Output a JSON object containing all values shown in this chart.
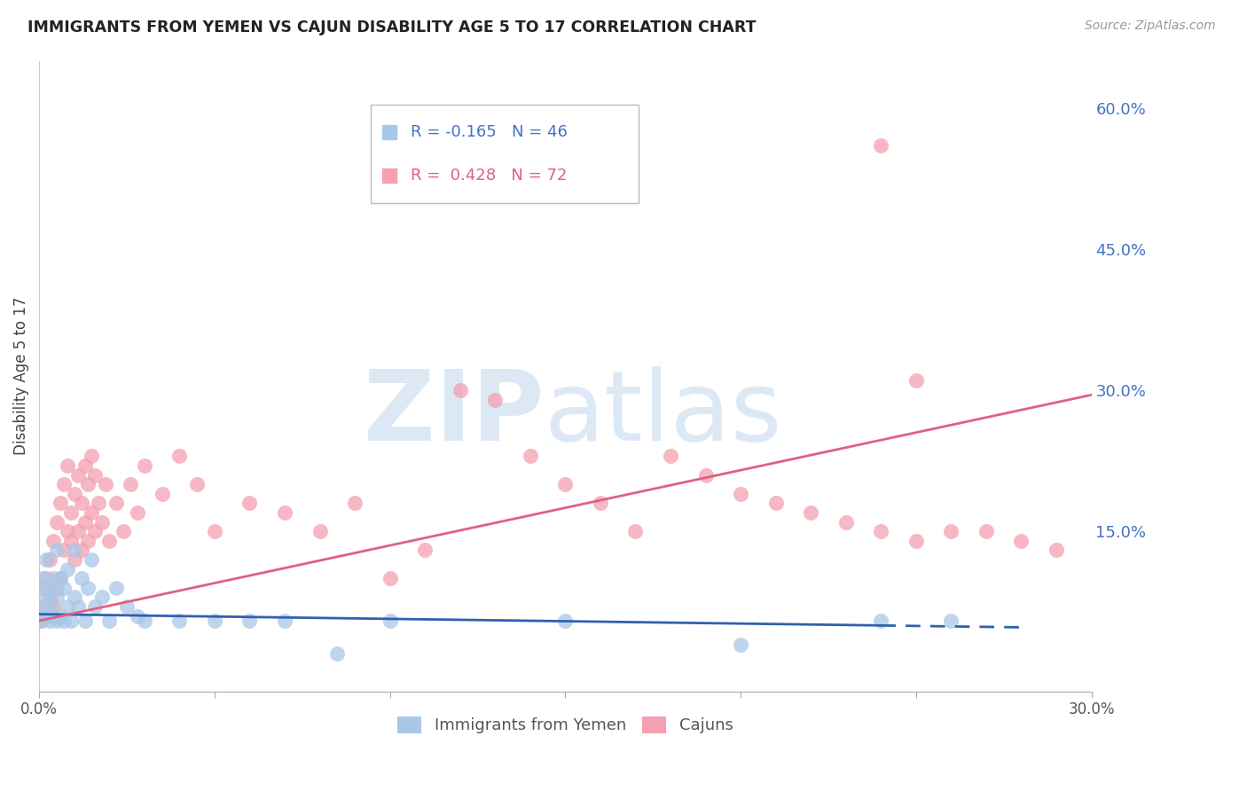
{
  "title": "IMMIGRANTS FROM YEMEN VS CAJUN DISABILITY AGE 5 TO 17 CORRELATION CHART",
  "source": "Source: ZipAtlas.com",
  "ylabel": "Disability Age 5 to 17",
  "xlim": [
    0.0,
    0.3
  ],
  "ylim": [
    -0.02,
    0.65
  ],
  "x_tick_positions": [
    0.0,
    0.05,
    0.1,
    0.15,
    0.2,
    0.25,
    0.3
  ],
  "x_tick_labels": [
    "0.0%",
    "",
    "",
    "",
    "",
    "",
    "30.0%"
  ],
  "y_ticks_right": [
    0.0,
    0.15,
    0.3,
    0.45,
    0.6
  ],
  "y_tick_labels_right": [
    "",
    "15.0%",
    "30.0%",
    "45.0%",
    "60.0%"
  ],
  "grid_color": "#cccccc",
  "background_color": "#ffffff",
  "watermark_color": "#dce9f5",
  "legend_r1": "R = -0.165",
  "legend_n1": "N = 46",
  "legend_r2": "R =  0.428",
  "legend_n2": "N = 72",
  "series1_name": "Immigrants from Yemen",
  "series2_name": "Cajuns",
  "series1_color": "#a8c8e8",
  "series2_color": "#f4a0b0",
  "series1_line_color": "#3060b0",
  "series2_line_color": "#e06080",
  "series1_x": [
    0.0005,
    0.001,
    0.001,
    0.0015,
    0.002,
    0.002,
    0.002,
    0.003,
    0.003,
    0.003,
    0.004,
    0.004,
    0.005,
    0.005,
    0.005,
    0.006,
    0.006,
    0.007,
    0.007,
    0.008,
    0.008,
    0.009,
    0.01,
    0.01,
    0.011,
    0.012,
    0.013,
    0.014,
    0.015,
    0.016,
    0.018,
    0.02,
    0.022,
    0.025,
    0.028,
    0.03,
    0.04,
    0.05,
    0.06,
    0.07,
    0.085,
    0.1,
    0.15,
    0.2,
    0.24,
    0.26
  ],
  "series1_y": [
    0.055,
    0.1,
    0.07,
    0.09,
    0.06,
    0.08,
    0.12,
    0.055,
    0.07,
    0.09,
    0.06,
    0.1,
    0.055,
    0.08,
    0.13,
    0.06,
    0.1,
    0.055,
    0.09,
    0.07,
    0.11,
    0.055,
    0.08,
    0.13,
    0.07,
    0.1,
    0.055,
    0.09,
    0.12,
    0.07,
    0.08,
    0.055,
    0.09,
    0.07,
    0.06,
    0.055,
    0.055,
    0.055,
    0.055,
    0.055,
    0.02,
    0.055,
    0.055,
    0.03,
    0.055,
    0.055
  ],
  "series2_x": [
    0.0005,
    0.001,
    0.001,
    0.002,
    0.002,
    0.003,
    0.003,
    0.004,
    0.004,
    0.005,
    0.005,
    0.006,
    0.006,
    0.007,
    0.007,
    0.008,
    0.008,
    0.009,
    0.009,
    0.01,
    0.01,
    0.011,
    0.011,
    0.012,
    0.012,
    0.013,
    0.013,
    0.014,
    0.014,
    0.015,
    0.015,
    0.016,
    0.016,
    0.017,
    0.018,
    0.019,
    0.02,
    0.022,
    0.024,
    0.026,
    0.028,
    0.03,
    0.035,
    0.04,
    0.045,
    0.05,
    0.06,
    0.07,
    0.08,
    0.09,
    0.1,
    0.11,
    0.12,
    0.13,
    0.14,
    0.15,
    0.16,
    0.17,
    0.18,
    0.19,
    0.2,
    0.21,
    0.22,
    0.23,
    0.24,
    0.25,
    0.26,
    0.27,
    0.28,
    0.29,
    0.25,
    0.24
  ],
  "series2_y": [
    0.055,
    0.07,
    0.09,
    0.06,
    0.1,
    0.08,
    0.12,
    0.07,
    0.14,
    0.09,
    0.16,
    0.1,
    0.18,
    0.13,
    0.2,
    0.15,
    0.22,
    0.14,
    0.17,
    0.12,
    0.19,
    0.15,
    0.21,
    0.13,
    0.18,
    0.16,
    0.22,
    0.14,
    0.2,
    0.17,
    0.23,
    0.15,
    0.21,
    0.18,
    0.16,
    0.2,
    0.14,
    0.18,
    0.15,
    0.2,
    0.17,
    0.22,
    0.19,
    0.23,
    0.2,
    0.15,
    0.18,
    0.17,
    0.15,
    0.18,
    0.1,
    0.13,
    0.3,
    0.29,
    0.23,
    0.2,
    0.18,
    0.15,
    0.23,
    0.21,
    0.19,
    0.18,
    0.17,
    0.16,
    0.15,
    0.14,
    0.15,
    0.15,
    0.14,
    0.13,
    0.31,
    0.56
  ],
  "yemen_line_x": [
    0.0,
    0.28
  ],
  "yemen_line_y": [
    0.062,
    0.048
  ],
  "cajun_line_x": [
    0.0,
    0.3
  ],
  "cajun_line_y": [
    0.055,
    0.295
  ]
}
